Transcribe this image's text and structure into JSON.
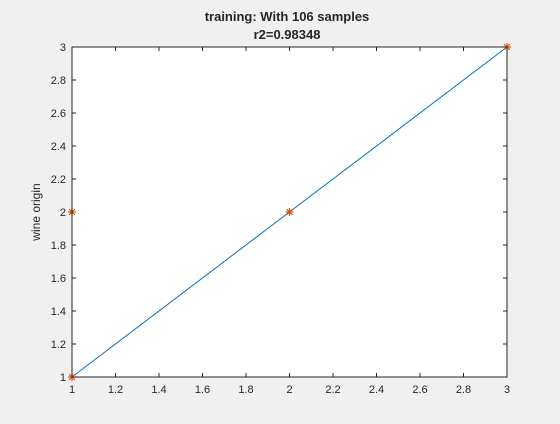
{
  "chart_data": {
    "type": "line",
    "title": "training: With 106 samples",
    "subtitle": "r2=0.98348",
    "xlabel": "",
    "ylabel": "wine origin",
    "xlim": [
      1,
      3
    ],
    "ylim": [
      1,
      3
    ],
    "xticks": [
      "1",
      "1.2",
      "1.4",
      "1.6",
      "1.8",
      "2",
      "2.2",
      "2.4",
      "2.6",
      "2.8",
      "3"
    ],
    "yticks": [
      "1",
      "1.2",
      "1.4",
      "1.6",
      "1.8",
      "2",
      "2.2",
      "2.4",
      "2.6",
      "2.8",
      "3"
    ],
    "grid": false,
    "series": [
      {
        "kind": "line",
        "color": "#0072bd",
        "x": [
          1,
          3
        ],
        "y": [
          1,
          3
        ]
      },
      {
        "kind": "scatter",
        "marker": "asterisk",
        "color": "#d95319",
        "x": [
          1,
          1,
          2,
          3
        ],
        "y": [
          1,
          2,
          2,
          3
        ]
      }
    ]
  }
}
